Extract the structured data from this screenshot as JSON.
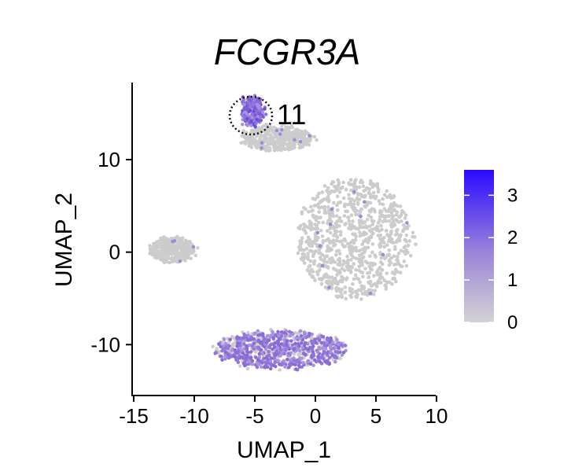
{
  "chart_data": {
    "type": "scatter",
    "title": "FCGR3A",
    "xlabel": "UMAP_1",
    "ylabel": "UMAP_2",
    "xlim": [
      -15,
      10
    ],
    "ylim": [
      -15.5,
      18.5
    ],
    "x_ticks": [
      -15,
      -10,
      -5,
      0,
      5,
      10
    ],
    "x_tick_labels": [
      "-15",
      "-10",
      "-5",
      "0",
      "5",
      "10"
    ],
    "y_ticks": [
      10,
      0,
      -10
    ],
    "y_tick_labels": [
      "10",
      "0",
      "-10"
    ],
    "annotation": {
      "text": "11",
      "cluster_center": [
        -5.2,
        15.2
      ]
    },
    "colorbar": {
      "label_values": [
        3,
        2,
        1,
        0
      ],
      "labels": [
        "3",
        "2",
        "1",
        "0"
      ],
      "range": [
        0,
        3.6
      ],
      "low_color": "#d3d3d3",
      "high_color": "#2a0aff"
    },
    "clusters": [
      {
        "name": "cluster-11",
        "center": [
          -5.2,
          15.2
        ],
        "size": [
          0.9,
          1.6
        ],
        "expression": "high"
      },
      {
        "name": "upper-arm",
        "center": [
          -3.2,
          12.3
        ],
        "size": [
          3.0,
          1.3
        ],
        "expression": "low"
      },
      {
        "name": "main-cluster",
        "center": [
          3.2,
          1.5
        ],
        "size": [
          4.8,
          6.5
        ],
        "expression": "low"
      },
      {
        "name": "left-island",
        "center": [
          -11.8,
          0.3
        ],
        "size": [
          1.9,
          1.3
        ],
        "expression": "low"
      },
      {
        "name": "lower-cluster",
        "center": [
          -2.8,
          -10.5
        ],
        "size": [
          5.5,
          2.0
        ],
        "expression": "medium"
      }
    ]
  }
}
